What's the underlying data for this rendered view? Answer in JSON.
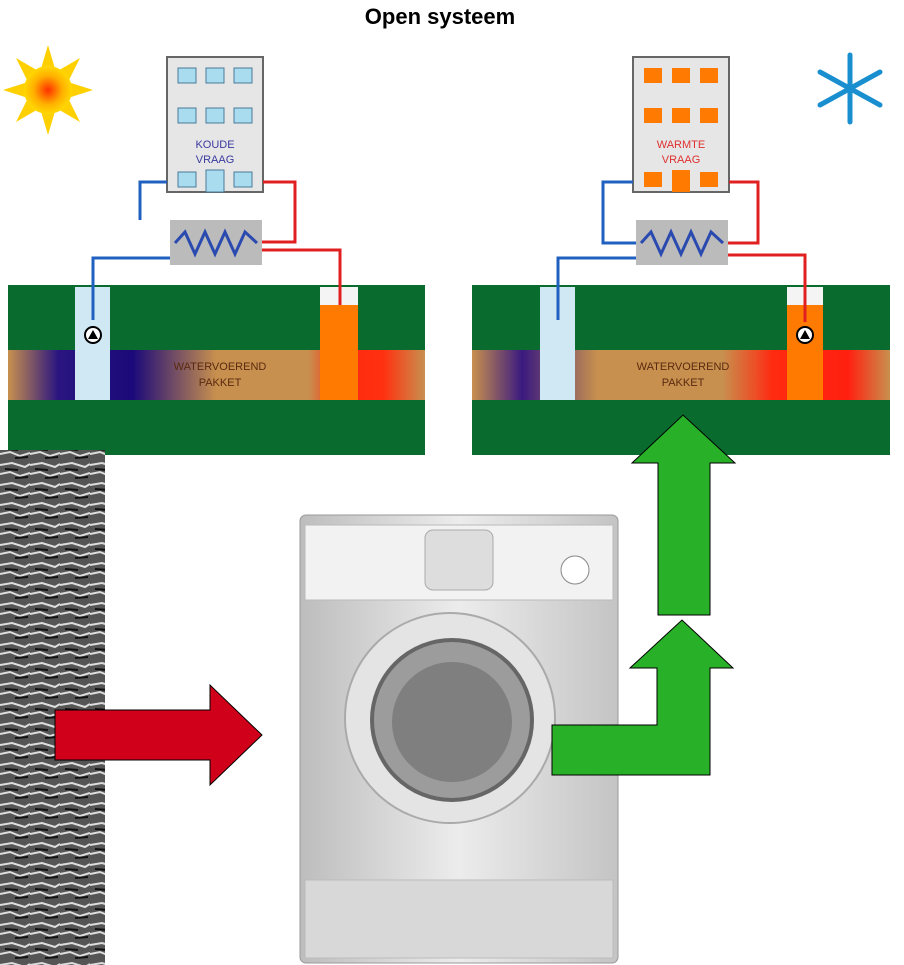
{
  "title": "Open systeem",
  "panels": [
    {
      "building_label": [
        "KOUDE",
        "VRAAG"
      ],
      "layer_label": [
        "WATERVOEREND",
        "PAKKET"
      ]
    },
    {
      "building_label": [
        "WARMTE",
        "VRAAG"
      ],
      "layer_label": [
        "WATERVOEREND",
        "PAKKET"
      ]
    }
  ]
}
